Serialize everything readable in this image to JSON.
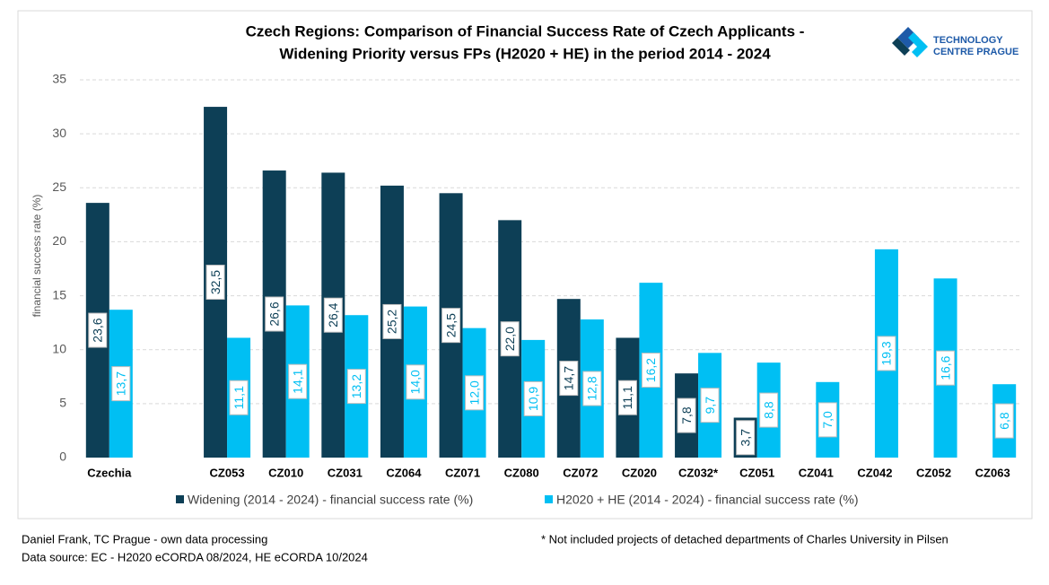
{
  "chart_data": {
    "type": "bar",
    "title": [
      "Czech Regions: Comparison of Financial Success Rate of Czech Applicants -",
      "Widening Priority versus FPs (H2020 + HE) in the period 2014 - 2024"
    ],
    "y_label": "financial success rate (%)",
    "categories": [
      "Czechia",
      null,
      "CZ053",
      "CZ010",
      "CZ031",
      "CZ064",
      "CZ071",
      "CZ080",
      "CZ072",
      "CZ020",
      "CZ032*",
      "CZ051",
      "CZ041",
      "CZ042",
      "CZ052",
      "CZ063"
    ],
    "series": [
      {
        "name": "Widening (2014 - 2024) - financial success rate (%)",
        "color": "#0d3f56",
        "values": [
          23.6,
          null,
          32.5,
          26.6,
          26.4,
          25.2,
          24.5,
          22.0,
          14.7,
          11.1,
          7.8,
          3.7,
          null,
          null,
          null,
          null
        ],
        "value_labels": [
          "23,6",
          null,
          "32,5",
          "26,6",
          "26,4",
          "25,2",
          "24,5",
          "22,0",
          "14,7",
          "11,1",
          "7,8",
          "3,7",
          null,
          null,
          null,
          null
        ]
      },
      {
        "name": "H2020 + HE (2014 - 2024) - financial success rate (%)",
        "color": "#00bff3",
        "values": [
          13.7,
          null,
          11.1,
          14.1,
          13.2,
          14.0,
          12.0,
          10.9,
          12.8,
          16.2,
          9.7,
          8.8,
          7.0,
          19.3,
          16.6,
          6.8
        ],
        "value_labels": [
          "13,7",
          null,
          "11,1",
          "14,1",
          "13,2",
          "14,0",
          "12,0",
          "10,9",
          "12,8",
          "16,2",
          "9,7",
          "8,8",
          "7,0",
          "19,3",
          "16,6",
          "6,8"
        ]
      }
    ],
    "ylim": [
      0,
      35
    ],
    "yticks": [
      0,
      5,
      10,
      15,
      20,
      25,
      30,
      35
    ],
    "grid": true,
    "legend": "bottom"
  },
  "logo": {
    "line1": "TECHNOLOGY",
    "line2": "CENTRE PRAGUE"
  },
  "footer": {
    "author": "Daniel Frank, TC Prague - own data processing",
    "source": "Data source: EC - H2020 eCORDA 08/2024, HE eCORDA 10/2024",
    "note": "* Not included projects of detached departments of Charles University in Pilsen"
  }
}
